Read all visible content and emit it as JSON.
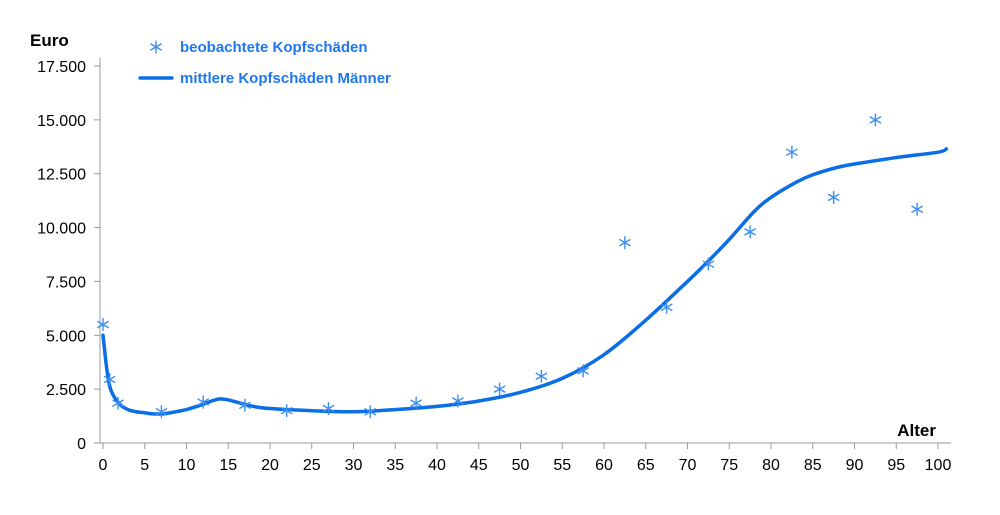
{
  "chart_data": {
    "type": "line",
    "ylabel": "Euro",
    "xlabel": "Alter",
    "xlim": [
      0,
      101
    ],
    "ylim": [
      0,
      17500
    ],
    "x_ticks": [
      0,
      5,
      10,
      15,
      20,
      25,
      30,
      35,
      40,
      45,
      50,
      55,
      60,
      65,
      70,
      75,
      80,
      85,
      90,
      95,
      100
    ],
    "y_ticks": [
      0,
      2500,
      5000,
      7500,
      10000,
      12500,
      15000,
      17500
    ],
    "y_tick_labels": [
      "0",
      "2.500",
      "5.000",
      "7.500",
      "10.000",
      "12.500",
      "15.000",
      "17.500"
    ],
    "grid": false,
    "legend_position": "top-left",
    "series": [
      {
        "name": "beobachtete Kopfschäden",
        "kind": "scatter",
        "marker": "asterisk",
        "color": "#3d8ef0",
        "x": [
          0,
          0.8,
          1.8,
          7,
          12,
          17,
          22,
          27,
          32,
          37.5,
          42.5,
          47.5,
          52.5,
          57.5,
          62.5,
          67.5,
          72.5,
          77.5,
          82.5,
          87.5,
          92.5,
          97.5
        ],
        "y": [
          5500,
          2950,
          1850,
          1450,
          1900,
          1750,
          1500,
          1600,
          1450,
          1850,
          1950,
          2500,
          3100,
          3350,
          9300,
          6300,
          8300,
          9800,
          13500,
          11400,
          15000,
          10850
        ]
      },
      {
        "name": "mittlere Kopfschäden Männer",
        "kind": "line",
        "color": "#0a6ee6",
        "x": [
          0,
          0.5,
          1,
          2,
          3,
          4,
          5,
          6,
          7,
          8,
          10,
          12,
          13,
          14,
          15,
          16,
          18,
          20,
          25,
          30,
          35,
          40,
          45,
          50,
          55,
          60,
          65,
          70,
          72,
          75,
          78,
          80,
          83,
          85,
          88,
          90,
          95,
          100,
          101
        ],
        "y": [
          5000,
          3300,
          2400,
          1800,
          1550,
          1450,
          1400,
          1350,
          1350,
          1400,
          1550,
          1800,
          1950,
          2050,
          2000,
          1900,
          1700,
          1600,
          1500,
          1450,
          1550,
          1700,
          1950,
          2350,
          3000,
          4100,
          5700,
          7500,
          8250,
          9450,
          10750,
          11400,
          12100,
          12450,
          12800,
          12950,
          13250,
          13500,
          13650
        ]
      }
    ]
  }
}
